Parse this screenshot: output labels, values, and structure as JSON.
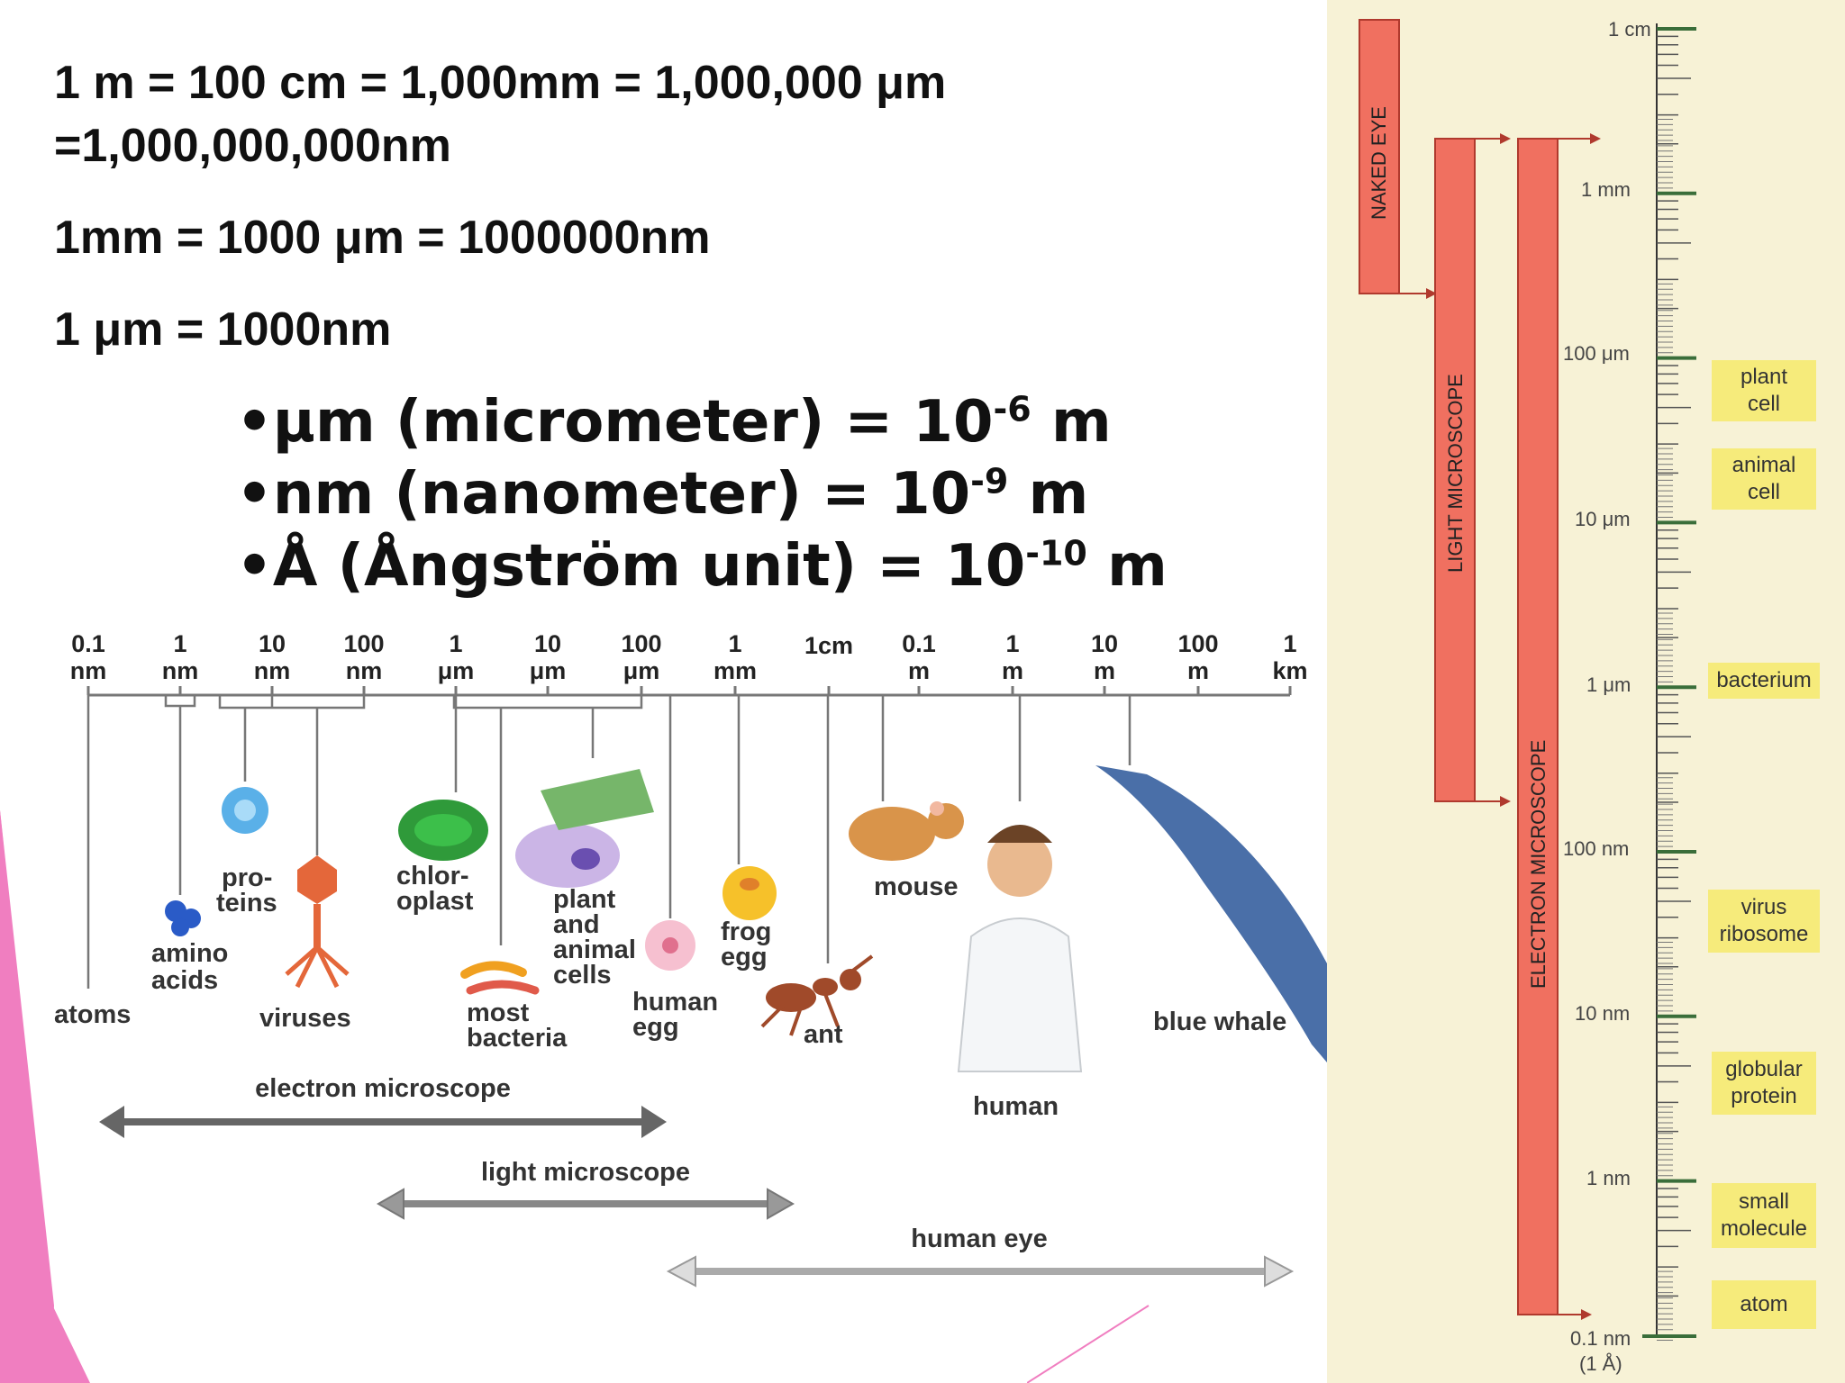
{
  "conversions": {
    "line1": "1 m = 100 cm = 1,000mm = 1,000,000 μm",
    "line1b": "=1,000,000,000nm",
    "line2": "1mm = 1000 μm = 1000000nm",
    "line3": "1 μm = 1000nm"
  },
  "bullets": [
    {
      "prefix": "•μm (micrometer) = 10",
      "exp": "-6",
      "suffix": " m"
    },
    {
      "prefix": "•nm (nanometer) = 10",
      "exp": "-9",
      "suffix": " m"
    },
    {
      "prefix": "•Å (Ångström unit) = 10",
      "exp": "-10",
      "suffix": " m"
    }
  ],
  "scale": {
    "ticks": [
      {
        "top": "0.1",
        "bottom": "nm"
      },
      {
        "top": "1",
        "bottom": "nm"
      },
      {
        "top": "10",
        "bottom": "nm"
      },
      {
        "top": "100",
        "bottom": "nm"
      },
      {
        "top": "1",
        "bottom": "μm"
      },
      {
        "top": "10",
        "bottom": "μm"
      },
      {
        "top": "100",
        "bottom": "μm"
      },
      {
        "top": "1",
        "bottom": "mm"
      },
      {
        "top": "1cm",
        "bottom": ""
      },
      {
        "top": "0.1",
        "bottom": "m"
      },
      {
        "top": "1",
        "bottom": "m"
      },
      {
        "top": "10",
        "bottom": "m"
      },
      {
        "top": "100",
        "bottom": "m"
      },
      {
        "top": "1",
        "bottom": "km"
      }
    ],
    "organisms": {
      "atoms": "atoms",
      "amino_acids": [
        "amino",
        "acids"
      ],
      "proteins": [
        "pro-",
        "teins"
      ],
      "viruses": "viruses",
      "chloroplast": [
        "chlor-",
        "oplast"
      ],
      "bacteria": [
        "most",
        "bacteria"
      ],
      "cells": [
        "plant",
        "and",
        "animal",
        "cells"
      ],
      "human_egg": [
        "human",
        "egg"
      ],
      "frog_egg": [
        "frog",
        "egg"
      ],
      "ant": "ant",
      "mouse": "mouse",
      "human": "human",
      "blue_whale": "blue whale"
    },
    "ranges": {
      "electron": "electron microscope",
      "light": "light microscope",
      "eye": "human eye"
    }
  },
  "right_chart": {
    "bars": {
      "naked_eye": "NAKED EYE",
      "light": "LIGHT MICROSCOPE",
      "electron": "ELECTRON MICROSCOPE"
    },
    "scale_labels": [
      "1 cm",
      "1 mm",
      "100 μm",
      "10 μm",
      "1 μm",
      "100 nm",
      "10 nm",
      "1 nm",
      "0.1 nm",
      "(1 Å)"
    ],
    "boxes": [
      "plant\ncell",
      "animal\ncell",
      "bacterium",
      "virus\nribosome",
      "globular\nprotein",
      "small\nmolecule",
      "atom"
    ]
  },
  "colors": {
    "pink": "#f07ec0",
    "bar_red": "#f07060",
    "bar_border": "#b03a2e",
    "yellow": "#f6eb7b",
    "panel_bg": "#f7f2d6",
    "scale_green": "#3a6e3a"
  }
}
